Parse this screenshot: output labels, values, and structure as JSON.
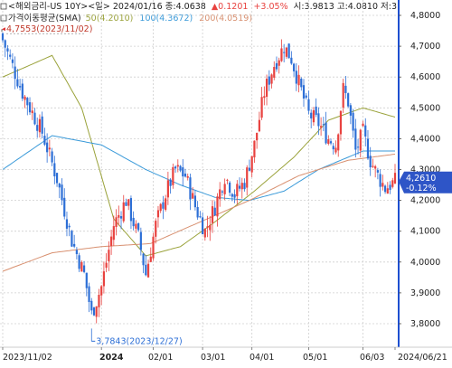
{
  "header": {
    "line1": {
      "prefix": "<해외금리-US 10Y><일> 2024/01/16 종:4.0638",
      "change": "▲0.1201",
      "change_pct": "+3.05%",
      "rest": "시:3.9813 고:4.0810 저:3."
    },
    "line2": {
      "title": "가격이동평균(SMA)",
      "ma50": "50(4.2010)",
      "ma100": "100(4.3672)",
      "ma200": "200(4.0519)"
    },
    "icons": [
      "square-toggle-icon",
      "square-toggle-icon"
    ]
  },
  "colors": {
    "up": "#e8423f",
    "down": "#2d6fd6",
    "ma50": "#9aa23a",
    "ma100": "#3a9ad9",
    "ma200": "#d89070",
    "grid": "#cfcfcf",
    "last_price_box": "#2e55c7",
    "right_axis_line": "#1e4fd0"
  },
  "chart_data": {
    "type": "candlestick",
    "title": "<해외금리-US 10Y><일>",
    "ylim": [
      3.75,
      4.8
    ],
    "y_ticks": [
      "4,8000",
      "4,7000",
      "4,6000",
      "4,5000",
      "4,4000",
      "4,3000",
      "4,2000",
      "4,1000",
      "4,0000",
      "3,9000",
      "3,8000"
    ],
    "y_tick_values": [
      4.8,
      4.7,
      4.6,
      4.5,
      4.4,
      4.3,
      4.2,
      4.1,
      4.0,
      3.9,
      3.8
    ],
    "x_ticks": [
      "2023/11/02",
      "2024",
      "02/01",
      "03/01",
      "04/01",
      "05/01",
      "06/03",
      "2024/06/21"
    ],
    "x_tick_bars": [
      0,
      40,
      61,
      81,
      101,
      124,
      146,
      159
    ],
    "bold_x_tick": "2024",
    "bar_count": 160,
    "anchors": [
      [
        0,
        4.72
      ],
      [
        8,
        4.55
      ],
      [
        16,
        4.42
      ],
      [
        22,
        4.27
      ],
      [
        28,
        4.07
      ],
      [
        33,
        3.96
      ],
      [
        36,
        3.83
      ],
      [
        40,
        3.92
      ],
      [
        45,
        4.12
      ],
      [
        50,
        4.2
      ],
      [
        55,
        4.08
      ],
      [
        58,
        3.96
      ],
      [
        62,
        4.12
      ],
      [
        66,
        4.22
      ],
      [
        70,
        4.3
      ],
      [
        74,
        4.28
      ],
      [
        78,
        4.18
      ],
      [
        82,
        4.1
      ],
      [
        86,
        4.18
      ],
      [
        90,
        4.28
      ],
      [
        94,
        4.22
      ],
      [
        98,
        4.26
      ],
      [
        102,
        4.38
      ],
      [
        106,
        4.55
      ],
      [
        110,
        4.64
      ],
      [
        114,
        4.7
      ],
      [
        117,
        4.66
      ],
      [
        120,
        4.58
      ],
      [
        124,
        4.48
      ],
      [
        128,
        4.45
      ],
      [
        132,
        4.4
      ],
      [
        135,
        4.38
      ],
      [
        138,
        4.56
      ],
      [
        140,
        4.52
      ],
      [
        143,
        4.36
      ],
      [
        146,
        4.42
      ],
      [
        149,
        4.33
      ],
      [
        152,
        4.28
      ],
      [
        155,
        4.24
      ],
      [
        159,
        4.261
      ]
    ],
    "series": [
      {
        "name": "50",
        "values": [
          [
            0,
            4.6
          ],
          [
            20,
            4.67
          ],
          [
            32,
            4.5
          ],
          [
            45,
            4.14
          ],
          [
            58,
            4.02
          ],
          [
            72,
            4.05
          ],
          [
            86,
            4.13
          ],
          [
            102,
            4.23
          ],
          [
            118,
            4.34
          ],
          [
            132,
            4.46
          ],
          [
            146,
            4.5
          ],
          [
            159,
            4.47
          ]
        ]
      },
      {
        "name": "100",
        "values": [
          [
            0,
            4.3
          ],
          [
            20,
            4.41
          ],
          [
            40,
            4.38
          ],
          [
            58,
            4.3
          ],
          [
            72,
            4.25
          ],
          [
            86,
            4.21
          ],
          [
            100,
            4.2
          ],
          [
            114,
            4.23
          ],
          [
            128,
            4.3
          ],
          [
            146,
            4.36
          ],
          [
            159,
            4.36
          ]
        ]
      },
      {
        "name": "200",
        "values": [
          [
            0,
            3.97
          ],
          [
            20,
            4.03
          ],
          [
            40,
            4.05
          ],
          [
            60,
            4.06
          ],
          [
            80,
            4.13
          ],
          [
            100,
            4.2
          ],
          [
            120,
            4.28
          ],
          [
            140,
            4.33
          ],
          [
            159,
            4.35
          ]
        ]
      }
    ],
    "annotations": [
      {
        "label": "4,7553(2023/11/02)",
        "bar": 0,
        "value": 4.7553,
        "position": "top-left"
      },
      {
        "label": "3,7843(2023/12/27)",
        "bar": 36,
        "value": 3.7843,
        "position": "bottom"
      }
    ],
    "last_price": {
      "value": 4.261,
      "label": "4,2610",
      "change_label": "-0.12%"
    }
  }
}
